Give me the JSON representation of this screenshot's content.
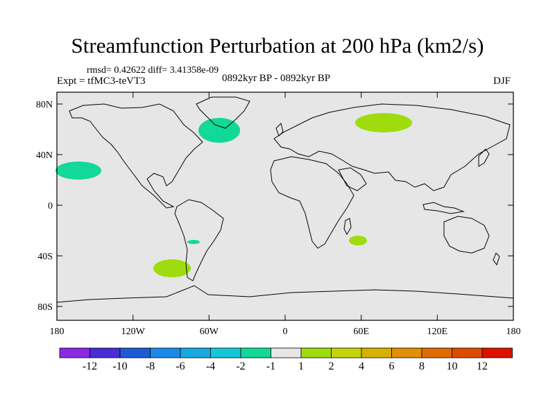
{
  "title": "Streamfunction Perturbation at 200 hPa (km2/s)",
  "stats": "rmsd= 0.42622 diff= 3.41358e-09",
  "experiment": "Expt = tfMC3-teVT3",
  "period": "0892kyr BP - 0892kyr BP",
  "season": "DJF",
  "y_ticks": [
    "80N",
    "40N",
    "0",
    "40S",
    "80S"
  ],
  "x_ticks": [
    "180",
    "120W",
    "60W",
    "0",
    "60E",
    "120E",
    "180"
  ],
  "colorbar": {
    "colors": [
      "#8a2be2",
      "#4b2bd8",
      "#1f5ad6",
      "#1a8ae6",
      "#18a8e0",
      "#14c8d8",
      "#12d898",
      "#e6e6e6",
      "#9edc0e",
      "#c4d40a",
      "#d8b000",
      "#e09000",
      "#e06c00",
      "#de4a00",
      "#e01000"
    ],
    "labels": [
      "-12",
      "-10",
      "-8",
      "-6",
      "-4",
      "-2",
      "-1",
      "1",
      "2",
      "4",
      "6",
      "8",
      "10",
      "12"
    ]
  },
  "colors": {
    "ocean": "#e6e6e6",
    "neg_light": "#12d898",
    "pos_light": "#9edc0e"
  }
}
